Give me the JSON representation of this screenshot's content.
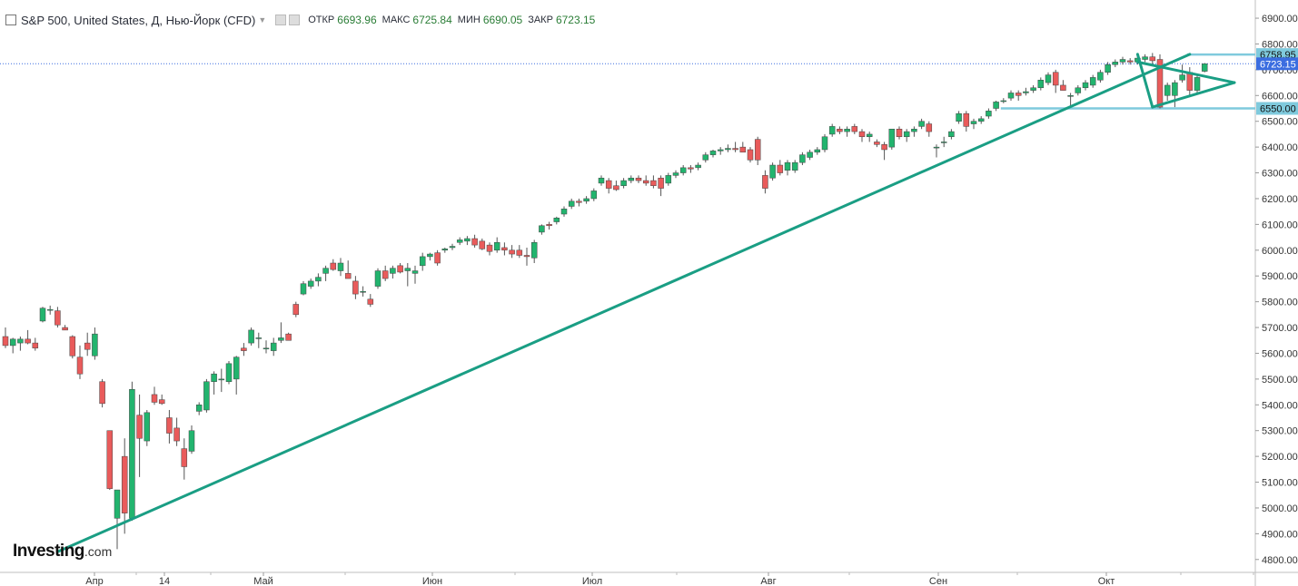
{
  "header": {
    "title": "S&P 500, United States, Д, Нью-Йорк (CFD)",
    "open_label": "ОТКР",
    "open_value": "6693.96",
    "high_label": "МАКС",
    "high_value": "6725.84",
    "low_label": "МИН",
    "low_value": "6690.05",
    "close_label": "ЗАКР",
    "close_value": "6723.15"
  },
  "logo": {
    "main": "Investing",
    "suffix": ".com"
  },
  "chart_data": {
    "type": "candlestick",
    "title": "S&P 500, United States, Д, Нью-Йорк (CFD)",
    "y_ticks": [
      "4800.00",
      "4900.00",
      "5000.00",
      "5100.00",
      "5200.00",
      "5300.00",
      "5400.00",
      "5500.00",
      "5600.00",
      "5700.00",
      "5800.00",
      "5900.00",
      "6000.00",
      "6100.00",
      "6200.00",
      "6300.00",
      "6400.00",
      "6500.00",
      "6600.00",
      "6700.00",
      "6800.00",
      "6900.00"
    ],
    "ylim": [
      4750,
      6960
    ],
    "x_labels": [
      "Апр",
      "14",
      "Май",
      "Июн",
      "Июл",
      "Авг",
      "Сен",
      "Окт"
    ],
    "price_labels": [
      {
        "value": 6758.95,
        "text": "6758.95",
        "style": "level"
      },
      {
        "value": 6723.15,
        "text": "6723.15",
        "style": "current"
      },
      {
        "value": 6550.0,
        "text": "6550.00",
        "style": "level"
      }
    ],
    "colors": {
      "up": "#22b46e",
      "down": "#e95b5b",
      "trend": "#1a9e84",
      "level": "#7fcadd",
      "current": "#3b6de0"
    },
    "candles": [
      {
        "o": 5665,
        "h": 5700,
        "l": 5620,
        "c": 5630
      },
      {
        "o": 5630,
        "h": 5660,
        "l": 5600,
        "c": 5655
      },
      {
        "o": 5640,
        "h": 5665,
        "l": 5610,
        "c": 5655
      },
      {
        "o": 5655,
        "h": 5690,
        "l": 5635,
        "c": 5640
      },
      {
        "o": 5640,
        "h": 5660,
        "l": 5610,
        "c": 5620
      },
      {
        "o": 5725,
        "h": 5780,
        "l": 5720,
        "c": 5775
      },
      {
        "o": 5770,
        "h": 5785,
        "l": 5750,
        "c": 5770
      },
      {
        "o": 5765,
        "h": 5780,
        "l": 5700,
        "c": 5710
      },
      {
        "o": 5700,
        "h": 5710,
        "l": 5690,
        "c": 5690
      },
      {
        "o": 5665,
        "h": 5670,
        "l": 5580,
        "c": 5590
      },
      {
        "o": 5585,
        "h": 5630,
        "l": 5500,
        "c": 5520
      },
      {
        "o": 5640,
        "h": 5680,
        "l": 5590,
        "c": 5615
      },
      {
        "o": 5590,
        "h": 5700,
        "l": 5575,
        "c": 5675
      },
      {
        "o": 5490,
        "h": 5500,
        "l": 5390,
        "c": 5405
      },
      {
        "o": 5300,
        "h": 5300,
        "l": 5070,
        "c": 5075
      },
      {
        "o": 4960,
        "h": 5070,
        "l": 4840,
        "c": 5070
      },
      {
        "o": 5200,
        "h": 5270,
        "l": 4900,
        "c": 4980
      },
      {
        "o": 4960,
        "h": 5490,
        "l": 4950,
        "c": 5460
      },
      {
        "o": 5360,
        "h": 5440,
        "l": 5120,
        "c": 5270
      },
      {
        "o": 5260,
        "h": 5380,
        "l": 5240,
        "c": 5370
      },
      {
        "o": 5440,
        "h": 5470,
        "l": 5400,
        "c": 5410
      },
      {
        "o": 5420,
        "h": 5440,
        "l": 5400,
        "c": 5405
      },
      {
        "o": 5350,
        "h": 5380,
        "l": 5250,
        "c": 5290
      },
      {
        "o": 5310,
        "h": 5350,
        "l": 5240,
        "c": 5260
      },
      {
        "o": 5230,
        "h": 5270,
        "l": 5110,
        "c": 5160
      },
      {
        "o": 5220,
        "h": 5320,
        "l": 5210,
        "c": 5300
      },
      {
        "o": 5375,
        "h": 5410,
        "l": 5360,
        "c": 5400
      },
      {
        "o": 5380,
        "h": 5500,
        "l": 5370,
        "c": 5490
      },
      {
        "o": 5490,
        "h": 5530,
        "l": 5440,
        "c": 5520
      },
      {
        "o": 5500,
        "h": 5540,
        "l": 5450,
        "c": 5500
      },
      {
        "o": 5490,
        "h": 5570,
        "l": 5480,
        "c": 5560
      },
      {
        "o": 5500,
        "h": 5590,
        "l": 5440,
        "c": 5585
      },
      {
        "o": 5620,
        "h": 5640,
        "l": 5590,
        "c": 5610
      },
      {
        "o": 5640,
        "h": 5700,
        "l": 5630,
        "c": 5690
      },
      {
        "o": 5660,
        "h": 5680,
        "l": 5620,
        "c": 5660
      },
      {
        "o": 5620,
        "h": 5650,
        "l": 5600,
        "c": 5620
      },
      {
        "o": 5610,
        "h": 5660,
        "l": 5590,
        "c": 5640
      },
      {
        "o": 5650,
        "h": 5720,
        "l": 5640,
        "c": 5660
      },
      {
        "o": 5675,
        "h": 5680,
        "l": 5650,
        "c": 5650
      },
      {
        "o": 5790,
        "h": 5800,
        "l": 5740,
        "c": 5750
      },
      {
        "o": 5830,
        "h": 5880,
        "l": 5825,
        "c": 5870
      },
      {
        "o": 5860,
        "h": 5890,
        "l": 5850,
        "c": 5880
      },
      {
        "o": 5880,
        "h": 5910,
        "l": 5860,
        "c": 5895
      },
      {
        "o": 5910,
        "h": 5940,
        "l": 5880,
        "c": 5930
      },
      {
        "o": 5950,
        "h": 5965,
        "l": 5920,
        "c": 5925
      },
      {
        "o": 5920,
        "h": 5970,
        "l": 5900,
        "c": 5950
      },
      {
        "o": 5910,
        "h": 5960,
        "l": 5890,
        "c": 5890
      },
      {
        "o": 5880,
        "h": 5900,
        "l": 5810,
        "c": 5830
      },
      {
        "o": 5840,
        "h": 5860,
        "l": 5820,
        "c": 5840
      },
      {
        "o": 5810,
        "h": 5830,
        "l": 5780,
        "c": 5790
      },
      {
        "o": 5860,
        "h": 5930,
        "l": 5850,
        "c": 5920
      },
      {
        "o": 5920,
        "h": 5940,
        "l": 5880,
        "c": 5890
      },
      {
        "o": 5910,
        "h": 5940,
        "l": 5890,
        "c": 5930
      },
      {
        "o": 5940,
        "h": 5950,
        "l": 5910,
        "c": 5915
      },
      {
        "o": 5920,
        "h": 5950,
        "l": 5860,
        "c": 5930
      },
      {
        "o": 5910,
        "h": 5940,
        "l": 5870,
        "c": 5920
      },
      {
        "o": 5940,
        "h": 5990,
        "l": 5920,
        "c": 5975
      },
      {
        "o": 5975,
        "h": 5990,
        "l": 5960,
        "c": 5985
      },
      {
        "o": 5990,
        "h": 6000,
        "l": 5940,
        "c": 5950
      },
      {
        "o": 6000,
        "h": 6010,
        "l": 5990,
        "c": 6005
      },
      {
        "o": 6010,
        "h": 6025,
        "l": 6000,
        "c": 6015
      },
      {
        "o": 6030,
        "h": 6050,
        "l": 6020,
        "c": 6040
      },
      {
        "o": 6035,
        "h": 6055,
        "l": 6020,
        "c": 6045
      },
      {
        "o": 6045,
        "h": 6060,
        "l": 6010,
        "c": 6020
      },
      {
        "o": 6035,
        "h": 6045,
        "l": 6000,
        "c": 6005
      },
      {
        "o": 6020,
        "h": 6030,
        "l": 5980,
        "c": 5995
      },
      {
        "o": 6000,
        "h": 6050,
        "l": 5990,
        "c": 6030
      },
      {
        "o": 6010,
        "h": 6030,
        "l": 5980,
        "c": 6000
      },
      {
        "o": 6000,
        "h": 6020,
        "l": 5970,
        "c": 5985
      },
      {
        "o": 6000,
        "h": 6020,
        "l": 5970,
        "c": 5980
      },
      {
        "o": 5980,
        "h": 6010,
        "l": 5940,
        "c": 5975
      },
      {
        "o": 5970,
        "h": 6040,
        "l": 5950,
        "c": 6030
      },
      {
        "o": 6070,
        "h": 6100,
        "l": 6060,
        "c": 6095
      },
      {
        "o": 6100,
        "h": 6110,
        "l": 6080,
        "c": 6095
      },
      {
        "o": 6110,
        "h": 6130,
        "l": 6100,
        "c": 6125
      },
      {
        "o": 6140,
        "h": 6170,
        "l": 6130,
        "c": 6160
      },
      {
        "o": 6170,
        "h": 6200,
        "l": 6160,
        "c": 6190
      },
      {
        "o": 6190,
        "h": 6200,
        "l": 6170,
        "c": 6185
      },
      {
        "o": 6190,
        "h": 6210,
        "l": 6180,
        "c": 6200
      },
      {
        "o": 6200,
        "h": 6240,
        "l": 6190,
        "c": 6230
      },
      {
        "o": 6260,
        "h": 6290,
        "l": 6250,
        "c": 6280
      },
      {
        "o": 6270,
        "h": 6280,
        "l": 6220,
        "c": 6240
      },
      {
        "o": 6250,
        "h": 6270,
        "l": 6230,
        "c": 6235
      },
      {
        "o": 6250,
        "h": 6280,
        "l": 6240,
        "c": 6270
      },
      {
        "o": 6270,
        "h": 6290,
        "l": 6260,
        "c": 6280
      },
      {
        "o": 6280,
        "h": 6290,
        "l": 6260,
        "c": 6270
      },
      {
        "o": 6270,
        "h": 6290,
        "l": 6250,
        "c": 6260
      },
      {
        "o": 6270,
        "h": 6290,
        "l": 6240,
        "c": 6250
      },
      {
        "o": 6280,
        "h": 6290,
        "l": 6210,
        "c": 6240
      },
      {
        "o": 6260,
        "h": 6300,
        "l": 6250,
        "c": 6290
      },
      {
        "o": 6290,
        "h": 6310,
        "l": 6280,
        "c": 6300
      },
      {
        "o": 6300,
        "h": 6330,
        "l": 6290,
        "c": 6320
      },
      {
        "o": 6320,
        "h": 6330,
        "l": 6300,
        "c": 6315
      },
      {
        "o": 6320,
        "h": 6340,
        "l": 6310,
        "c": 6330
      },
      {
        "o": 6350,
        "h": 6380,
        "l": 6340,
        "c": 6370
      },
      {
        "o": 6370,
        "h": 6390,
        "l": 6360,
        "c": 6385
      },
      {
        "o": 6385,
        "h": 6400,
        "l": 6370,
        "c": 6390
      },
      {
        "o": 6390,
        "h": 6410,
        "l": 6380,
        "c": 6395
      },
      {
        "o": 6395,
        "h": 6420,
        "l": 6380,
        "c": 6390
      },
      {
        "o": 6400,
        "h": 6420,
        "l": 6380,
        "c": 6380
      },
      {
        "o": 6390,
        "h": 6400,
        "l": 6340,
        "c": 6350
      },
      {
        "o": 6430,
        "h": 6440,
        "l": 6330,
        "c": 6350
      },
      {
        "o": 6290,
        "h": 6310,
        "l": 6220,
        "c": 6240
      },
      {
        "o": 6280,
        "h": 6340,
        "l": 6270,
        "c": 6330
      },
      {
        "o": 6330,
        "h": 6350,
        "l": 6290,
        "c": 6300
      },
      {
        "o": 6310,
        "h": 6350,
        "l": 6290,
        "c": 6340
      },
      {
        "o": 6310,
        "h": 6350,
        "l": 6300,
        "c": 6340
      },
      {
        "o": 6340,
        "h": 6380,
        "l": 6330,
        "c": 6370
      },
      {
        "o": 6360,
        "h": 6390,
        "l": 6350,
        "c": 6380
      },
      {
        "o": 6380,
        "h": 6400,
        "l": 6370,
        "c": 6390
      },
      {
        "o": 6390,
        "h": 6450,
        "l": 6380,
        "c": 6440
      },
      {
        "o": 6450,
        "h": 6490,
        "l": 6440,
        "c": 6480
      },
      {
        "o": 6470,
        "h": 6480,
        "l": 6450,
        "c": 6460
      },
      {
        "o": 6460,
        "h": 6480,
        "l": 6440,
        "c": 6470
      },
      {
        "o": 6480,
        "h": 6490,
        "l": 6450,
        "c": 6460
      },
      {
        "o": 6460,
        "h": 6470,
        "l": 6420,
        "c": 6440
      },
      {
        "o": 6440,
        "h": 6460,
        "l": 6420,
        "c": 6450
      },
      {
        "o": 6420,
        "h": 6430,
        "l": 6400,
        "c": 6410
      },
      {
        "o": 6410,
        "h": 6420,
        "l": 6350,
        "c": 6390
      },
      {
        "o": 6400,
        "h": 6470,
        "l": 6390,
        "c": 6470
      },
      {
        "o": 6470,
        "h": 6480,
        "l": 6430,
        "c": 6440
      },
      {
        "o": 6440,
        "h": 6470,
        "l": 6420,
        "c": 6460
      },
      {
        "o": 6460,
        "h": 6480,
        "l": 6440,
        "c": 6470
      },
      {
        "o": 6480,
        "h": 6510,
        "l": 6470,
        "c": 6500
      },
      {
        "o": 6490,
        "h": 6500,
        "l": 6440,
        "c": 6460
      },
      {
        "o": 6400,
        "h": 6410,
        "l": 6360,
        "c": 6400
      },
      {
        "o": 6420,
        "h": 6440,
        "l": 6400,
        "c": 6420
      },
      {
        "o": 6440,
        "h": 6470,
        "l": 6430,
        "c": 6460
      },
      {
        "o": 6500,
        "h": 6540,
        "l": 6490,
        "c": 6530
      },
      {
        "o": 6530,
        "h": 6540,
        "l": 6460,
        "c": 6480
      },
      {
        "o": 6490,
        "h": 6510,
        "l": 6470,
        "c": 6500
      },
      {
        "o": 6500,
        "h": 6520,
        "l": 6490,
        "c": 6510
      },
      {
        "o": 6520,
        "h": 6550,
        "l": 6510,
        "c": 6540
      },
      {
        "o": 6550,
        "h": 6580,
        "l": 6540,
        "c": 6575
      },
      {
        "o": 6580,
        "h": 6590,
        "l": 6570,
        "c": 6580
      },
      {
        "o": 6590,
        "h": 6620,
        "l": 6580,
        "c": 6610
      },
      {
        "o": 6610,
        "h": 6620,
        "l": 6580,
        "c": 6600
      },
      {
        "o": 6610,
        "h": 6630,
        "l": 6600,
        "c": 6615
      },
      {
        "o": 6620,
        "h": 6640,
        "l": 6610,
        "c": 6630
      },
      {
        "o": 6630,
        "h": 6670,
        "l": 6620,
        "c": 6660
      },
      {
        "o": 6650,
        "h": 6690,
        "l": 6640,
        "c": 6680
      },
      {
        "o": 6690,
        "h": 6700,
        "l": 6610,
        "c": 6640
      },
      {
        "o": 6640,
        "h": 6660,
        "l": 6620,
        "c": 6620
      },
      {
        "o": 6600,
        "h": 6610,
        "l": 6560,
        "c": 6600
      },
      {
        "o": 6610,
        "h": 6640,
        "l": 6600,
        "c": 6630
      },
      {
        "o": 6630,
        "h": 6660,
        "l": 6620,
        "c": 6650
      },
      {
        "o": 6640,
        "h": 6680,
        "l": 6630,
        "c": 6670
      },
      {
        "o": 6660,
        "h": 6700,
        "l": 6650,
        "c": 6690
      },
      {
        "o": 6690,
        "h": 6730,
        "l": 6680,
        "c": 6720
      },
      {
        "o": 6720,
        "h": 6740,
        "l": 6710,
        "c": 6730
      },
      {
        "o": 6730,
        "h": 6750,
        "l": 6720,
        "c": 6740
      },
      {
        "o": 6735,
        "h": 6745,
        "l": 6720,
        "c": 6730
      },
      {
        "o": 6730,
        "h": 6750,
        "l": 6720,
        "c": 6745
      },
      {
        "o": 6740,
        "h": 6760,
        "l": 6730,
        "c": 6750
      },
      {
        "o": 6750,
        "h": 6765,
        "l": 6720,
        "c": 6735
      },
      {
        "o": 6740,
        "h": 6760,
        "l": 6550,
        "c": 6555
      },
      {
        "o": 6600,
        "h": 6650,
        "l": 6580,
        "c": 6640
      },
      {
        "o": 6600,
        "h": 6660,
        "l": 6555,
        "c": 6650
      },
      {
        "o": 6660,
        "h": 6720,
        "l": 6650,
        "c": 6680
      },
      {
        "o": 6690,
        "h": 6710,
        "l": 6600,
        "c": 6620
      },
      {
        "o": 6620,
        "h": 6680,
        "l": 6610,
        "c": 6670
      },
      {
        "o": 6694,
        "h": 6726,
        "l": 6690,
        "c": 6723
      }
    ],
    "lines": [
      {
        "name": "trend",
        "points": [
          [
            7,
            4830
          ],
          [
            159,
            6760
          ]
        ]
      },
      {
        "name": "pennant-upper",
        "points": [
          [
            152,
            6730
          ],
          [
            165,
            6650
          ]
        ]
      },
      {
        "name": "pennant-lower",
        "points": [
          [
            154,
            6555
          ],
          [
            165,
            6650
          ]
        ]
      },
      {
        "name": "pennant-cap",
        "points": [
          [
            152,
            6760
          ],
          [
            154,
            6555
          ]
        ]
      }
    ],
    "levels": [
      {
        "value": 6758.95,
        "from_index": 159
      },
      {
        "value": 6550.0,
        "from_index": 134
      }
    ]
  }
}
